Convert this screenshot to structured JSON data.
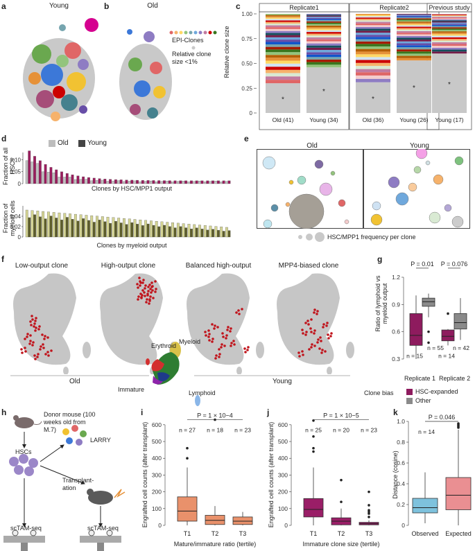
{
  "panel_labels": {
    "a": "a",
    "b": "b",
    "c": "c",
    "d": "d",
    "e": "e",
    "f": "f",
    "g": "g",
    "h": "h",
    "i": "i",
    "j": "j",
    "k": "k"
  },
  "a": {
    "title": "Young"
  },
  "b": {
    "title": "Old",
    "legend_clones": "EPI-Clones",
    "legend_small": "Relative clone size <1%"
  },
  "c": {
    "ylabel": "Relative clone size",
    "ticks": [
      "0",
      "0.25",
      "0.50",
      "0.75",
      "1.00"
    ],
    "facets": [
      "Replicate1",
      "Replicate2",
      "Previous study"
    ],
    "bars": [
      {
        "label": "Old (41)",
        "small": 0.3
      },
      {
        "label": "Young (34)",
        "small": 0.46
      },
      {
        "label": "Old (36)",
        "small": 0.31
      },
      {
        "label": "Young (26)",
        "small": 0.53
      },
      {
        "label": "Young (17)",
        "small": 0.6
      }
    ],
    "star": "*"
  },
  "d": {
    "legend_old": "Old",
    "legend_young": "Young",
    "top_ylabel": "Fraction of all HSCs",
    "top_ticks": [
      "0",
      "0.05",
      "0.10"
    ],
    "top_xlabel": "Clones by HSC/MPP1 output",
    "bot_ylabel": "Fraction of myeloid cells",
    "bot_ticks": [
      "0",
      "0.02",
      "0.04"
    ],
    "bot_xlabel": "Clones by myeloid output"
  },
  "e": {
    "left_title": "Old",
    "right_title": "Young",
    "legend": "HSC/MPP1 frequency per clone"
  },
  "f": {
    "titles": [
      "Low-output clone",
      "High-output clone",
      "Balanced high-output",
      "MPP4-biased clone"
    ],
    "group_old": "Old",
    "group_young": "Young",
    "types": {
      "erythroid": "Erythroid",
      "myeloid": "Myeloid",
      "immature": "Immature",
      "lymphoid": "Lymphoid"
    }
  },
  "g": {
    "ylabel": "Ratio of lymphoid vs myeloid output",
    "ticks": [
      "0.3",
      "0.6",
      "0.9",
      "1.2"
    ],
    "p1": "P = 0.01",
    "p2": "P = 0.076",
    "n1a": "n = 55",
    "n1b": "n = 15",
    "n2a": "n = 42",
    "n2b": "n = 14",
    "x1": "Replicate 1",
    "x2": "Replicate 2",
    "legend_title": "Clone bias",
    "legend_a": "HSC-expanded",
    "legend_b": "Other",
    "colors": {
      "expanded": "#8e1b5e",
      "other": "#8a8a8a"
    }
  },
  "h": {
    "donor": "Donor mouse (100 weeks old from M.7)",
    "larry": "LARRY",
    "hscs": "HSCs",
    "transplant": "Transplant-ation",
    "scTAM1": "scTAM-seq",
    "scTAM2": "scTAM-seq"
  },
  "i": {
    "ylabel": "Engrafted cell counts (after transplant)",
    "ticks": [
      "0",
      "100",
      "200",
      "300",
      "400",
      "500",
      "600"
    ],
    "p": "P = 1 × 10−4",
    "n": [
      "n = 27",
      "n = 18",
      "n = 23"
    ],
    "x": [
      "T1",
      "T2",
      "T3"
    ],
    "xlabel": "Mature/immature ratio (tertile)",
    "color": "#e9916b"
  },
  "j": {
    "ylabel": "Engrafted cell counts (after transplant)",
    "ticks": [
      "0",
      "100",
      "200",
      "300",
      "400",
      "500",
      "600"
    ],
    "p": "P = 1 × 10−5",
    "n": [
      "n = 25",
      "n = 20",
      "n = 23"
    ],
    "x": [
      "T1",
      "T2",
      "T3"
    ],
    "xlabel": "Immature clone size (tertile)",
    "color": "#9a1e67"
  },
  "k": {
    "ylabel": "Distance (cosine)",
    "ticks": [
      "0",
      "0.2",
      "0.4",
      "0.6",
      "0.8",
      "1.0"
    ],
    "p": "P = 0.046",
    "n": "n = 14",
    "x": [
      "Observed",
      "Expected"
    ],
    "colors": [
      "#7ec2dd",
      "#ea8f92"
    ]
  }
}
